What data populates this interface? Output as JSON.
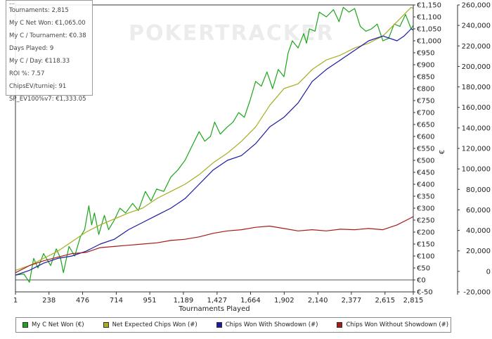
{
  "watermark": "POKERTRACKER",
  "stats": {
    "partial_top": "...",
    "lines": [
      "Tournaments: 2,815",
      "My C Net Won: €1,065.00",
      "My C / Tournament: €0.38",
      "Days Played: 9",
      "My C / Day: €118.33",
      "ROI %: 7.57",
      "ChipsEV/turniej: 91",
      "SP_EV100%v7: €1,333.05"
    ]
  },
  "chart_data": {
    "type": "line",
    "xlabel": "Tournaments Played",
    "y_left_label": "€",
    "x_ticks": [
      1,
      238,
      476,
      714,
      951,
      1189,
      1427,
      1664,
      1902,
      2140,
      2377,
      2615,
      2815
    ],
    "x_tick_labels": [
      "1",
      "238",
      "476",
      "714",
      "951",
      "1,189",
      "1,427",
      "1,664",
      "1,902",
      "2,140",
      "2,377",
      "2,615",
      "2,815"
    ],
    "xlim": [
      1,
      2815
    ],
    "y_left_ticks": [
      -50,
      0,
      50,
      100,
      150,
      200,
      250,
      300,
      350,
      400,
      450,
      500,
      550,
      600,
      650,
      700,
      750,
      800,
      850,
      900,
      950,
      1000,
      1050,
      1100,
      1150
    ],
    "y_left_tick_labels": [
      "€-50",
      "€0",
      "€50",
      "€100",
      "€150",
      "€200",
      "€250",
      "€300",
      "€350",
      "€400",
      "€450",
      "€500",
      "€550",
      "€600",
      "€650",
      "€700",
      "€750",
      "€800",
      "€850",
      "€900",
      "€950",
      "€1,000",
      "€1,050",
      "€1,100",
      "€1,150"
    ],
    "ylim_left": [
      -50,
      1150
    ],
    "y_right_ticks": [
      -20000,
      0,
      20000,
      40000,
      60000,
      80000,
      100000,
      120000,
      140000,
      160000,
      180000,
      200000,
      220000,
      240000,
      260000
    ],
    "y_right_tick_labels": [
      "-20,000",
      "0",
      "20,000",
      "40,000",
      "60,000",
      "80,000",
      "100,000",
      "120,000",
      "140,000",
      "160,000",
      "180,000",
      "200,000",
      "220,000",
      "240,000",
      "260,000"
    ],
    "series": [
      {
        "name": "My C Net Won (€)",
        "color": "#1aa61a",
        "points": [
          [
            1,
            20
          ],
          [
            60,
            25
          ],
          [
            100,
            -10
          ],
          [
            130,
            90
          ],
          [
            160,
            50
          ],
          [
            200,
            110
          ],
          [
            250,
            60
          ],
          [
            290,
            130
          ],
          [
            320,
            90
          ],
          [
            340,
            30
          ],
          [
            380,
            140
          ],
          [
            420,
            100
          ],
          [
            460,
            180
          ],
          [
            490,
            210
          ],
          [
            520,
            310
          ],
          [
            540,
            230
          ],
          [
            560,
            280
          ],
          [
            590,
            190
          ],
          [
            630,
            270
          ],
          [
            660,
            210
          ],
          [
            700,
            250
          ],
          [
            740,
            300
          ],
          [
            780,
            280
          ],
          [
            830,
            320
          ],
          [
            870,
            290
          ],
          [
            920,
            370
          ],
          [
            960,
            330
          ],
          [
            1000,
            380
          ],
          [
            1050,
            370
          ],
          [
            1100,
            430
          ],
          [
            1150,
            460
          ],
          [
            1200,
            500
          ],
          [
            1250,
            560
          ],
          [
            1300,
            620
          ],
          [
            1340,
            580
          ],
          [
            1380,
            600
          ],
          [
            1410,
            660
          ],
          [
            1450,
            610
          ],
          [
            1500,
            640
          ],
          [
            1540,
            660
          ],
          [
            1580,
            700
          ],
          [
            1620,
            680
          ],
          [
            1660,
            750
          ],
          [
            1700,
            830
          ],
          [
            1740,
            810
          ],
          [
            1780,
            870
          ],
          [
            1820,
            800
          ],
          [
            1860,
            880
          ],
          [
            1900,
            850
          ],
          [
            1930,
            950
          ],
          [
            1960,
            1000
          ],
          [
            2000,
            970
          ],
          [
            2040,
            1030
          ],
          [
            2060,
            990
          ],
          [
            2080,
            1050
          ],
          [
            2120,
            1040
          ],
          [
            2150,
            1120
          ],
          [
            2200,
            1100
          ],
          [
            2250,
            1130
          ],
          [
            2290,
            1080
          ],
          [
            2320,
            1140
          ],
          [
            2360,
            1120
          ],
          [
            2400,
            1135
          ],
          [
            2440,
            1060
          ],
          [
            2480,
            1040
          ],
          [
            2520,
            1050
          ],
          [
            2560,
            1070
          ],
          [
            2600,
            1000
          ],
          [
            2640,
            1010
          ],
          [
            2680,
            1070
          ],
          [
            2720,
            1060
          ],
          [
            2760,
            1110
          ],
          [
            2800,
            1050
          ],
          [
            2815,
            1065
          ]
        ]
      },
      {
        "name": "Net Expected Chips Won (#)",
        "color": "#a8ac1e",
        "points": [
          [
            1,
            40
          ],
          [
            100,
            60
          ],
          [
            200,
            90
          ],
          [
            300,
            120
          ],
          [
            400,
            160
          ],
          [
            500,
            200
          ],
          [
            600,
            230
          ],
          [
            700,
            255
          ],
          [
            800,
            280
          ],
          [
            900,
            300
          ],
          [
            1000,
            340
          ],
          [
            1100,
            370
          ],
          [
            1200,
            400
          ],
          [
            1300,
            440
          ],
          [
            1400,
            490
          ],
          [
            1500,
            530
          ],
          [
            1600,
            580
          ],
          [
            1700,
            640
          ],
          [
            1800,
            730
          ],
          [
            1900,
            800
          ],
          [
            2000,
            820
          ],
          [
            2100,
            880
          ],
          [
            2200,
            920
          ],
          [
            2300,
            940
          ],
          [
            2400,
            970
          ],
          [
            2500,
            990
          ],
          [
            2600,
            1020
          ],
          [
            2700,
            1080
          ],
          [
            2800,
            1140
          ],
          [
            2815,
            1135
          ]
        ]
      },
      {
        "name": "Chips Won With Showdown (#)",
        "color": "#1a1aa6",
        "points": [
          [
            1,
            20
          ],
          [
            100,
            40
          ],
          [
            200,
            70
          ],
          [
            300,
            90
          ],
          [
            400,
            100
          ],
          [
            500,
            120
          ],
          [
            600,
            150
          ],
          [
            700,
            170
          ],
          [
            800,
            210
          ],
          [
            900,
            240
          ],
          [
            1000,
            270
          ],
          [
            1100,
            300
          ],
          [
            1200,
            340
          ],
          [
            1300,
            400
          ],
          [
            1400,
            460
          ],
          [
            1500,
            500
          ],
          [
            1600,
            520
          ],
          [
            1700,
            570
          ],
          [
            1800,
            640
          ],
          [
            1900,
            680
          ],
          [
            2000,
            740
          ],
          [
            2100,
            830
          ],
          [
            2200,
            880
          ],
          [
            2300,
            920
          ],
          [
            2400,
            960
          ],
          [
            2500,
            1000
          ],
          [
            2600,
            1020
          ],
          [
            2700,
            1000
          ],
          [
            2750,
            1020
          ],
          [
            2800,
            1050
          ],
          [
            2815,
            1045
          ]
        ]
      },
      {
        "name": "Chips Won Without Showdown (#)",
        "color": "#a61a1a",
        "points": [
          [
            1,
            30
          ],
          [
            100,
            60
          ],
          [
            200,
            80
          ],
          [
            300,
            95
          ],
          [
            400,
            110
          ],
          [
            500,
            115
          ],
          [
            600,
            135
          ],
          [
            700,
            140
          ],
          [
            800,
            145
          ],
          [
            900,
            150
          ],
          [
            1000,
            155
          ],
          [
            1100,
            165
          ],
          [
            1200,
            170
          ],
          [
            1300,
            180
          ],
          [
            1400,
            195
          ],
          [
            1500,
            205
          ],
          [
            1600,
            210
          ],
          [
            1700,
            220
          ],
          [
            1800,
            225
          ],
          [
            1900,
            215
          ],
          [
            2000,
            205
          ],
          [
            2100,
            210
          ],
          [
            2200,
            205
          ],
          [
            2300,
            212
          ],
          [
            2400,
            210
          ],
          [
            2500,
            215
          ],
          [
            2600,
            210
          ],
          [
            2700,
            230
          ],
          [
            2800,
            260
          ],
          [
            2815,
            265
          ]
        ]
      }
    ]
  }
}
